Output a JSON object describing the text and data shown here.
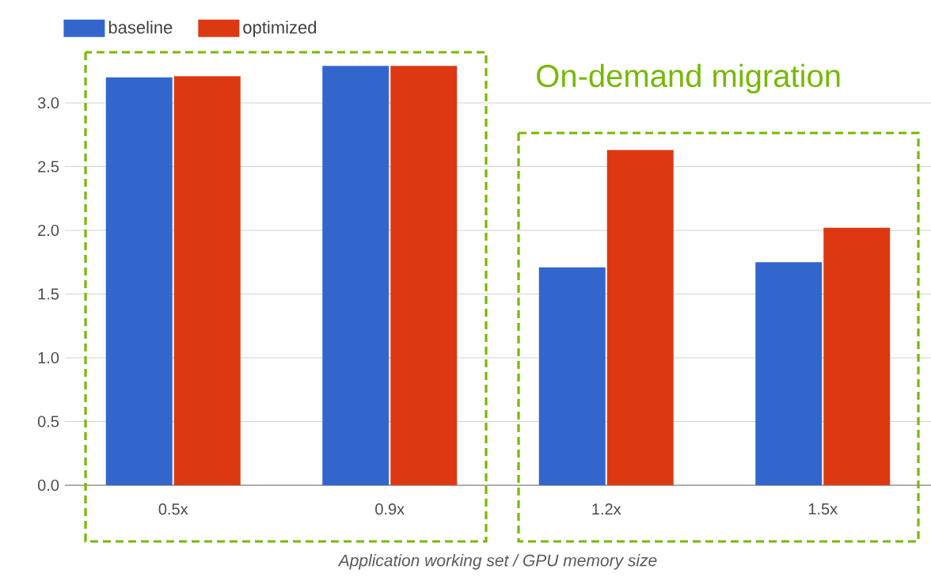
{
  "chart_data": {
    "type": "bar",
    "categories": [
      "0.5x",
      "0.9x",
      "1.2x",
      "1.5x"
    ],
    "series": [
      {
        "name": "baseline",
        "color": "#3366cc",
        "values": [
          3.2,
          3.29,
          1.71,
          1.75
        ]
      },
      {
        "name": "optimized",
        "color": "#dc3912",
        "values": [
          3.21,
          3.29,
          2.63,
          2.02
        ]
      }
    ],
    "xlabel": "Application working set / GPU memory size",
    "annotations": [
      "On-demand migration"
    ],
    "ylim": [
      0,
      3.4
    ],
    "yticks": [
      {
        "value": 0,
        "label": "0.0"
      },
      {
        "value": 0.5,
        "label": "0.5"
      },
      {
        "value": 1,
        "label": "1.0"
      },
      {
        "value": 1.5,
        "label": "1.5"
      },
      {
        "value": 2,
        "label": "2.0"
      },
      {
        "value": 2.5,
        "label": "2.5"
      },
      {
        "value": 3,
        "label": "3.0"
      }
    ],
    "grid": "y",
    "legend": "top left"
  }
}
